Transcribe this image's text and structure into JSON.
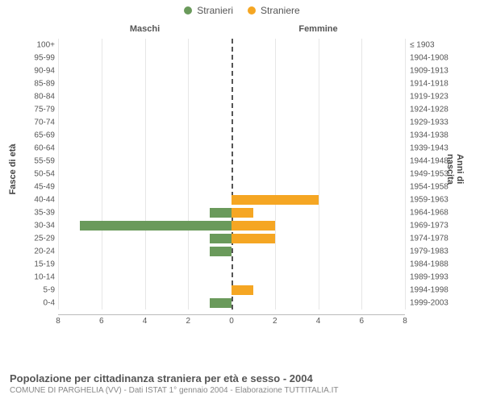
{
  "legend": {
    "male": {
      "label": "Stranieri",
      "color": "#6a9a5b"
    },
    "female": {
      "label": "Straniere",
      "color": "#f5a623"
    }
  },
  "chart": {
    "type": "horizontal-bar-pyramid",
    "topLabelLeft": "Maschi",
    "topLabelRight": "Femmine",
    "axisLeftTitle": "Fasce di età",
    "axisRightTitle": "Anni di nascita",
    "xmax": 8,
    "xtick_step": 2,
    "xlabels_left": [
      "8",
      "6",
      "4",
      "2",
      "0"
    ],
    "xlabels_right": [
      "0",
      "2",
      "4",
      "6",
      "8"
    ],
    "background_color": "#ffffff",
    "grid_color": "#e6e6e6",
    "center_line_color": "#555555",
    "rows": [
      {
        "age": "100+",
        "birth": "≤ 1903",
        "male": 0,
        "female": 0
      },
      {
        "age": "95-99",
        "birth": "1904-1908",
        "male": 0,
        "female": 0
      },
      {
        "age": "90-94",
        "birth": "1909-1913",
        "male": 0,
        "female": 0
      },
      {
        "age": "85-89",
        "birth": "1914-1918",
        "male": 0,
        "female": 0
      },
      {
        "age": "80-84",
        "birth": "1919-1923",
        "male": 0,
        "female": 0
      },
      {
        "age": "75-79",
        "birth": "1924-1928",
        "male": 0,
        "female": 0
      },
      {
        "age": "70-74",
        "birth": "1929-1933",
        "male": 0,
        "female": 0
      },
      {
        "age": "65-69",
        "birth": "1934-1938",
        "male": 0,
        "female": 0
      },
      {
        "age": "60-64",
        "birth": "1939-1943",
        "male": 0,
        "female": 0
      },
      {
        "age": "55-59",
        "birth": "1944-1948",
        "male": 0,
        "female": 0
      },
      {
        "age": "50-54",
        "birth": "1949-1953",
        "male": 0,
        "female": 0
      },
      {
        "age": "45-49",
        "birth": "1954-1958",
        "male": 0,
        "female": 0
      },
      {
        "age": "40-44",
        "birth": "1959-1963",
        "male": 0,
        "female": 4
      },
      {
        "age": "35-39",
        "birth": "1964-1968",
        "male": 1,
        "female": 1
      },
      {
        "age": "30-34",
        "birth": "1969-1973",
        "male": 7,
        "female": 2
      },
      {
        "age": "25-29",
        "birth": "1974-1978",
        "male": 1,
        "female": 2
      },
      {
        "age": "20-24",
        "birth": "1979-1983",
        "male": 1,
        "female": 0
      },
      {
        "age": "15-19",
        "birth": "1984-1988",
        "male": 0,
        "female": 0
      },
      {
        "age": "10-14",
        "birth": "1989-1993",
        "male": 0,
        "female": 0
      },
      {
        "age": "5-9",
        "birth": "1994-1998",
        "male": 0,
        "female": 1
      },
      {
        "age": "0-4",
        "birth": "1999-2003",
        "male": 1,
        "female": 0
      }
    ]
  },
  "caption": {
    "title": "Popolazione per cittadinanza straniera per età e sesso - 2004",
    "subtitle": "COMUNE DI PARGHELIA (VV) - Dati ISTAT 1° gennaio 2004 - Elaborazione TUTTITALIA.IT"
  }
}
